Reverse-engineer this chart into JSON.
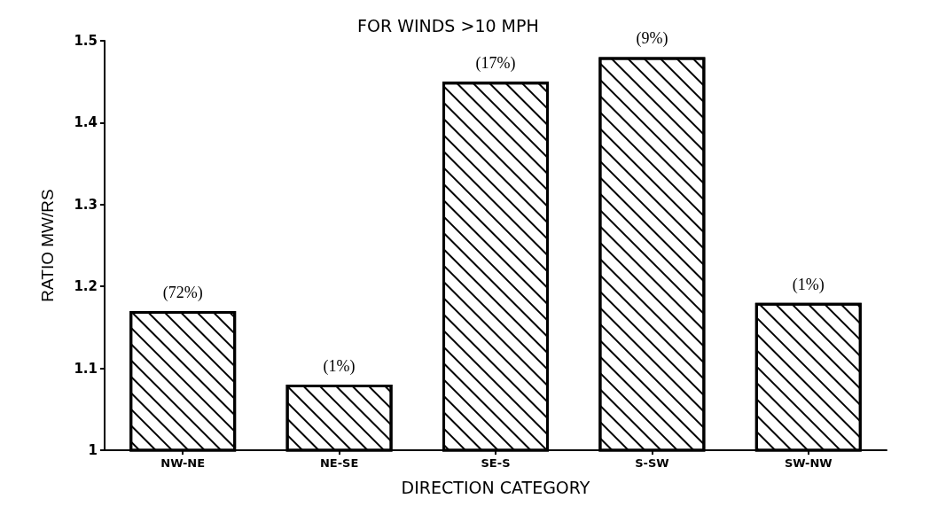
{
  "chart_data": {
    "type": "bar",
    "title": "FOR WINDS >10 MPH",
    "xlabel": "DIRECTION CATEGORY",
    "ylabel": "RATIO MW/RS",
    "categories": [
      "NW-NE",
      "NE-SE",
      "SE-S",
      "S-SW",
      "SW-NW"
    ],
    "values": [
      1.17,
      1.08,
      1.45,
      1.48,
      1.18
    ],
    "annotations": [
      {
        "text": "(72%)",
        "x": "NW-NE",
        "y": 1.17
      },
      {
        "text": "(1%)",
        "x": "NE-SE",
        "y": 1.08
      },
      {
        "text": "(17%)",
        "x": "SE-S",
        "y": 1.45
      },
      {
        "text": "(9%)",
        "x": "S-SW",
        "y": 1.48
      },
      {
        "text": "(1%)",
        "x": "SW-NW",
        "y": 1.18
      }
    ],
    "color": "#000000",
    "ylim": [
      1,
      1.5
    ],
    "yticks": [
      1,
      1.1,
      1.2,
      1.3,
      1.4,
      1.5
    ],
    "grid": false
  }
}
